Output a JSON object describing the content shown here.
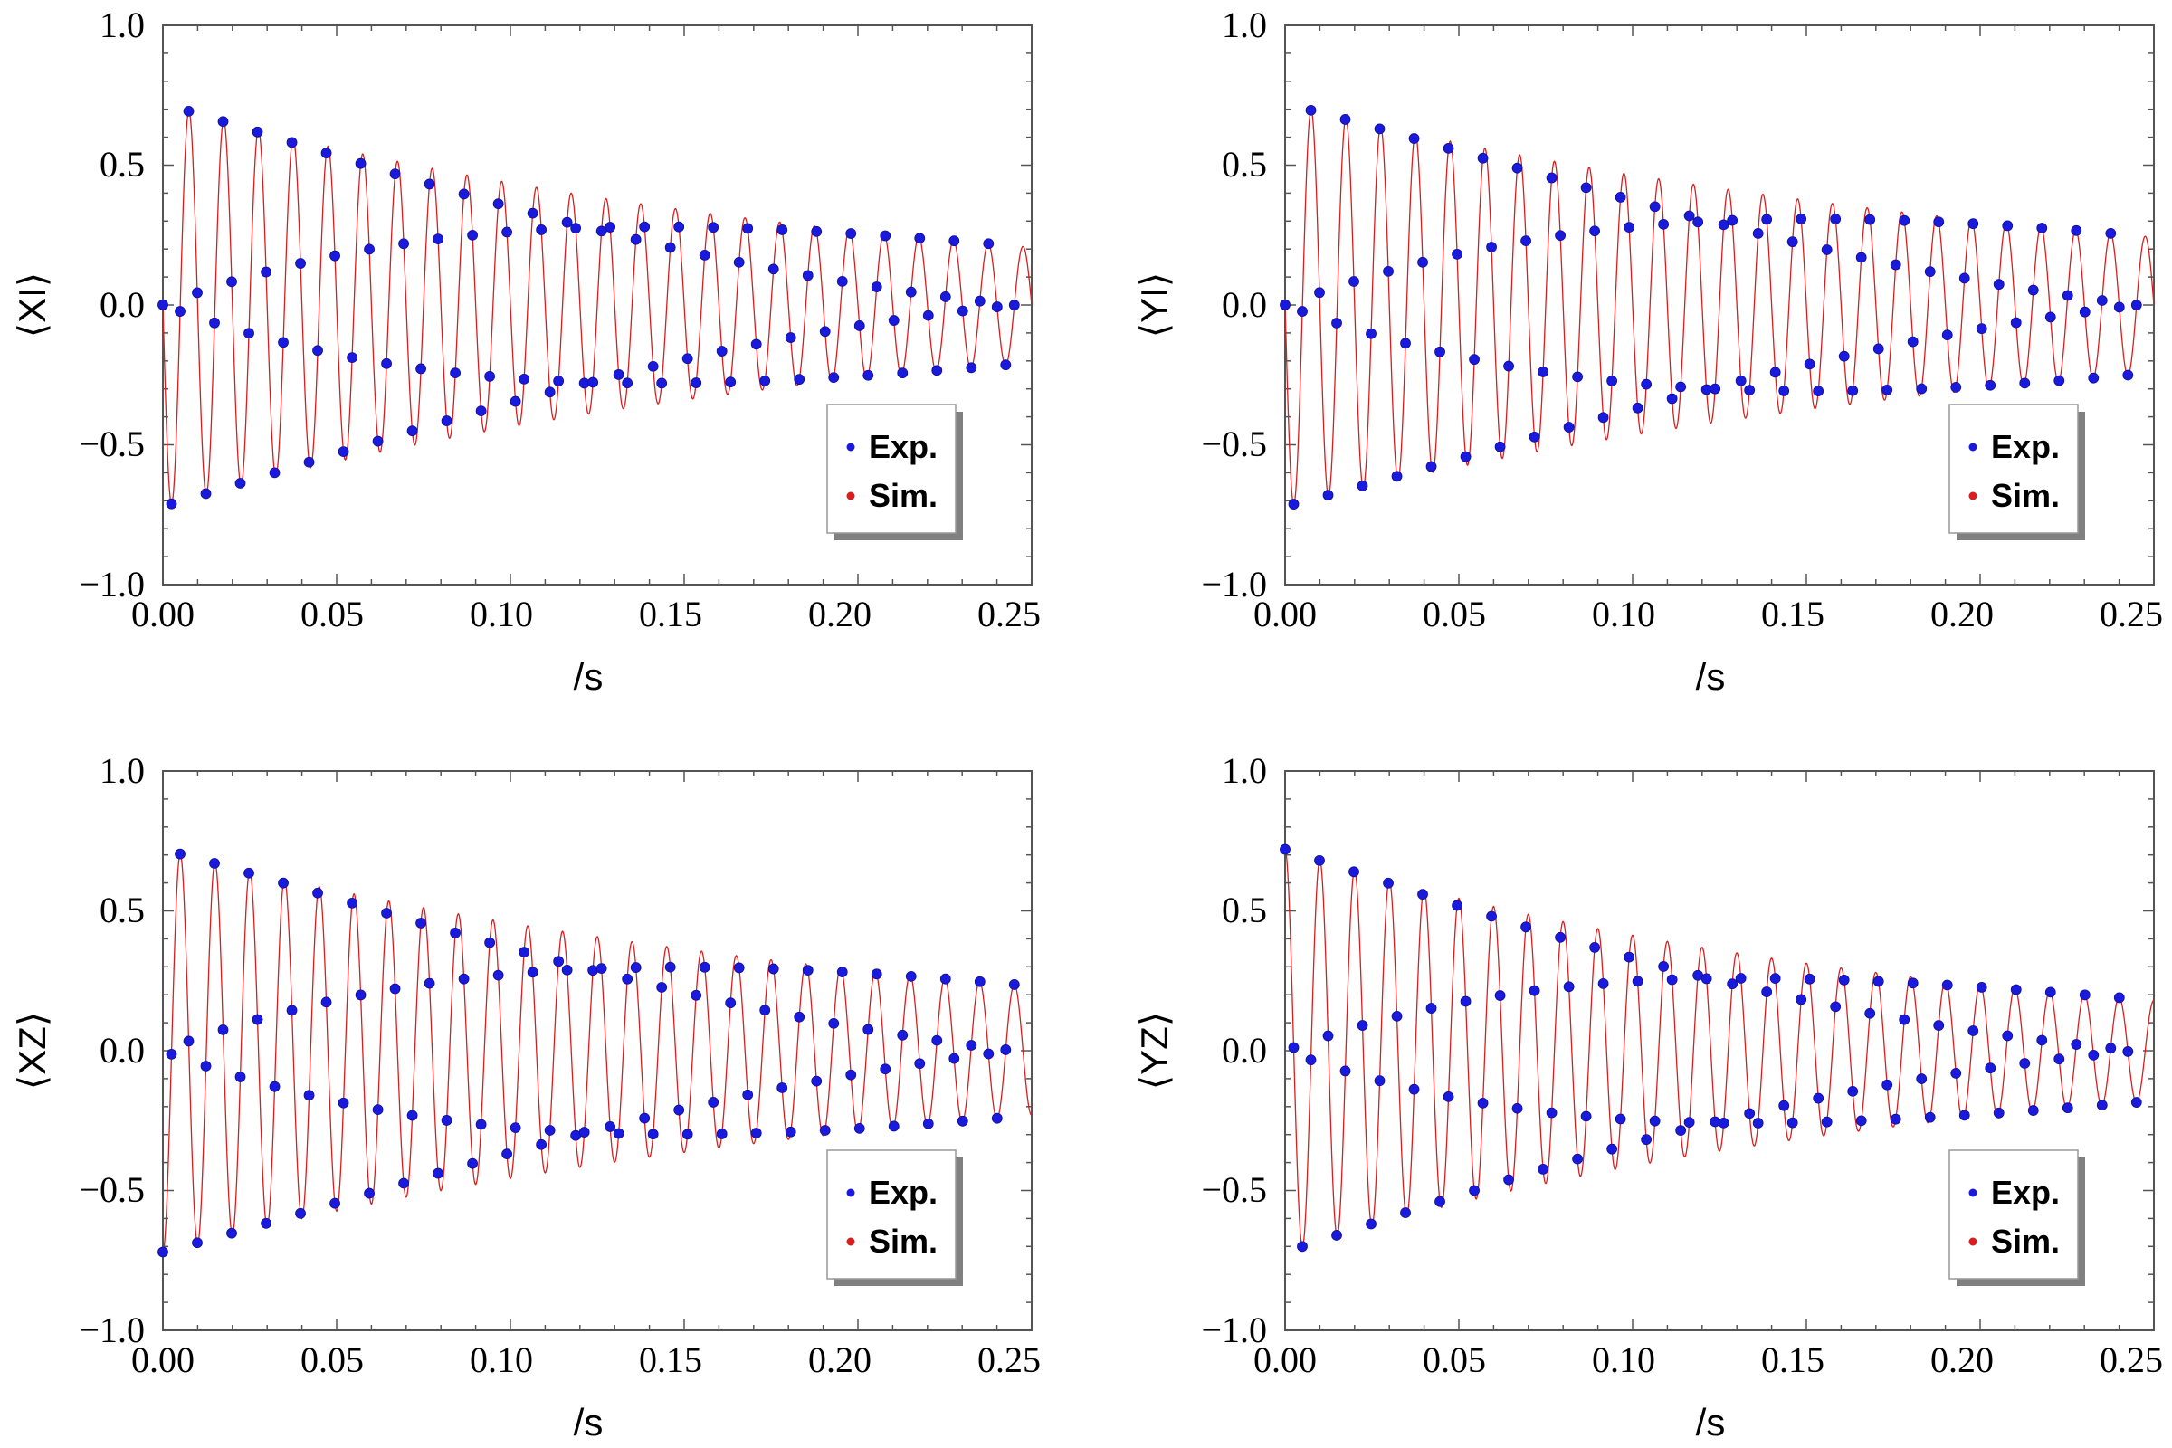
{
  "colors": {
    "exp": "#1a1adc",
    "sim": "#d81e1e",
    "frame": "#555555",
    "shadow": "#808080"
  },
  "legend": {
    "exp_label": "Exp.",
    "sim_label": "Sim.",
    "placement": "bottom-right"
  },
  "chart_data": [
    {
      "type": "scatter",
      "title": "",
      "ylabel": "⟨XI⟩",
      "xlabel": "/s",
      "xlim": [
        0,
        0.25
      ],
      "ylim": [
        -1.0,
        1.0
      ],
      "x_ticks": [
        "0.00",
        "0.05",
        "0.10",
        "0.15",
        "0.20",
        "0.25"
      ],
      "y_ticks": [
        "1.0",
        "0.5",
        "0.0",
        "−0.5",
        "−1.0"
      ],
      "series": [
        {
          "name": "Exp.",
          "model": {
            "amplitude": 0.72,
            "decay_time_s": 0.2,
            "frequency_hz": 100,
            "phase_rad": 1.57,
            "offset": 0,
            "t_start_s": 0,
            "t_end_s": 0.245,
            "n_points": 100
          }
        },
        {
          "name": "Sim.",
          "model": {
            "amplitude": 0.72,
            "decay_time_s": 0.2,
            "frequency_hz": 100,
            "phase_rad": 1.57,
            "offset": 0,
            "t_start_s": 0,
            "t_end_s": 0.25
          }
        }
      ]
    },
    {
      "type": "scatter",
      "title": "",
      "ylabel": "⟨YI⟩",
      "xlabel": "/s",
      "xlim": [
        0,
        0.25
      ],
      "ylim": [
        -1.0,
        1.0
      ],
      "x_ticks": [
        "0.00",
        "0.05",
        "0.10",
        "0.15",
        "0.20",
        "0.25"
      ],
      "y_ticks": [
        "1.0",
        "0.5",
        "0.0",
        "−0.5",
        "−1.0"
      ],
      "series": [
        {
          "name": "Exp.",
          "model": {
            "amplitude": 0.72,
            "decay_time_s": 0.23,
            "frequency_hz": 100,
            "phase_rad": 1.57,
            "offset": 0,
            "t_start_s": 0,
            "t_end_s": 0.245,
            "n_points": 100
          }
        },
        {
          "name": "Sim.",
          "model": {
            "amplitude": 0.72,
            "decay_time_s": 0.23,
            "frequency_hz": 100,
            "phase_rad": 1.57,
            "offset": 0,
            "t_start_s": 0,
            "t_end_s": 0.25
          }
        }
      ]
    },
    {
      "type": "scatter",
      "title": "",
      "ylabel": "⟨XZ⟩",
      "xlabel": "/s",
      "xlim": [
        0,
        0.25
      ],
      "ylim": [
        -1.0,
        1.0
      ],
      "x_ticks": [
        "0.00",
        "0.05",
        "0.10",
        "0.15",
        "0.20",
        "0.25"
      ],
      "y_ticks": [
        "1.0",
        "0.5",
        "0.0",
        "−0.5",
        "−1.0"
      ],
      "series": [
        {
          "name": "Exp.",
          "model": {
            "amplitude": 0.72,
            "decay_time_s": 0.22,
            "frequency_hz": 100,
            "phase_rad": 3.14,
            "offset": 0,
            "t_start_s": 0,
            "t_end_s": 0.245,
            "n_points": 100
          }
        },
        {
          "name": "Sim.",
          "model": {
            "amplitude": 0.72,
            "decay_time_s": 0.22,
            "frequency_hz": 100,
            "phase_rad": 3.14,
            "offset": 0,
            "t_start_s": 0,
            "t_end_s": 0.25
          }
        }
      ]
    },
    {
      "type": "scatter",
      "title": "",
      "ylabel": "⟨YZ⟩",
      "xlabel": "/s",
      "xlim": [
        0,
        0.25
      ],
      "ylim": [
        -1.0,
        1.0
      ],
      "x_ticks": [
        "0.00",
        "0.05",
        "0.10",
        "0.15",
        "0.20",
        "0.25"
      ],
      "y_ticks": [
        "1.0",
        "0.5",
        "0.0",
        "−0.5",
        "−1.0"
      ],
      "series": [
        {
          "name": "Exp.",
          "model": {
            "amplitude": 0.72,
            "decay_time_s": 0.18,
            "frequency_hz": 100,
            "phase_rad": 0.0,
            "offset": 0,
            "t_start_s": 0,
            "t_end_s": 0.245,
            "n_points": 100
          }
        },
        {
          "name": "Sim.",
          "model": {
            "amplitude": 0.72,
            "decay_time_s": 0.18,
            "frequency_hz": 100,
            "phase_rad": 0.0,
            "offset": 0,
            "t_start_s": 0,
            "t_end_s": 0.25
          }
        }
      ]
    }
  ]
}
